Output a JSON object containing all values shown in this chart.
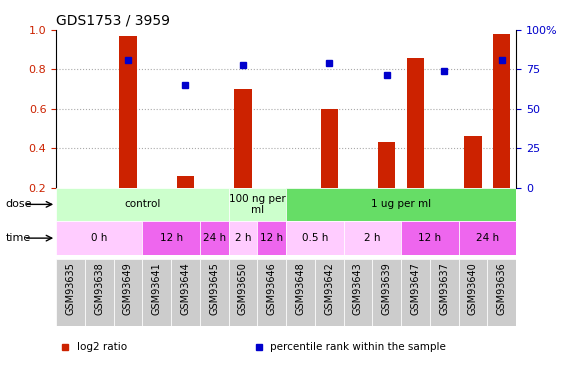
{
  "title": "GDS1753 / 3959",
  "samples": [
    "GSM93635",
    "GSM93638",
    "GSM93649",
    "GSM93641",
    "GSM93644",
    "GSM93645",
    "GSM93650",
    "GSM93646",
    "GSM93648",
    "GSM93642",
    "GSM93643",
    "GSM93639",
    "GSM93647",
    "GSM93637",
    "GSM93640",
    "GSM93636"
  ],
  "log2_ratio": [
    0,
    0,
    0.97,
    0,
    0.26,
    0,
    0.7,
    0,
    0,
    0.6,
    0,
    0.43,
    0.86,
    0,
    0.46,
    0.98
  ],
  "percentile_rank": [
    null,
    null,
    0.85,
    null,
    0.72,
    null,
    0.82,
    null,
    null,
    0.83,
    null,
    0.77,
    null,
    0.79,
    null,
    0.85
  ],
  "bar_color": "#cc2200",
  "dot_color": "#0000cc",
  "ymin": 0.2,
  "ymax": 1.0,
  "y_ticks_left": [
    0.2,
    0.4,
    0.6,
    0.8,
    1.0
  ],
  "y_ticks_right": [
    0,
    25,
    50,
    75,
    100
  ],
  "dose_groups": [
    {
      "label": "control",
      "start": 0,
      "end": 6,
      "color": "#ccffcc"
    },
    {
      "label": "100 ng per\nml",
      "start": 6,
      "end": 8,
      "color": "#ccffcc"
    },
    {
      "label": "1 ug per ml",
      "start": 8,
      "end": 16,
      "color": "#66dd66"
    }
  ],
  "time_groups": [
    {
      "label": "0 h",
      "start": 0,
      "end": 3,
      "color": "#ffccff"
    },
    {
      "label": "12 h",
      "start": 3,
      "end": 5,
      "color": "#ee66ee"
    },
    {
      "label": "24 h",
      "start": 5,
      "end": 6,
      "color": "#ee66ee"
    },
    {
      "label": "2 h",
      "start": 6,
      "end": 7,
      "color": "#ffccff"
    },
    {
      "label": "12 h",
      "start": 7,
      "end": 8,
      "color": "#ee66ee"
    },
    {
      "label": "0.5 h",
      "start": 8,
      "end": 10,
      "color": "#ffccff"
    },
    {
      "label": "2 h",
      "start": 10,
      "end": 12,
      "color": "#ffccff"
    },
    {
      "label": "12 h",
      "start": 12,
      "end": 14,
      "color": "#ee66ee"
    },
    {
      "label": "24 h",
      "start": 14,
      "end": 16,
      "color": "#ee66ee"
    }
  ],
  "legend_items": [
    {
      "color": "#cc2200",
      "label": "log2 ratio"
    },
    {
      "color": "#0000cc",
      "label": "percentile rank within the sample"
    }
  ],
  "background_color": "#ffffff",
  "grid_color": "#aaaaaa",
  "tick_label_bg": "#cccccc",
  "left_axis_color": "#cc2200",
  "right_axis_color": "#0000cc",
  "label_fontsize": 8,
  "tick_fontsize": 7,
  "annot_fontsize": 7.5
}
